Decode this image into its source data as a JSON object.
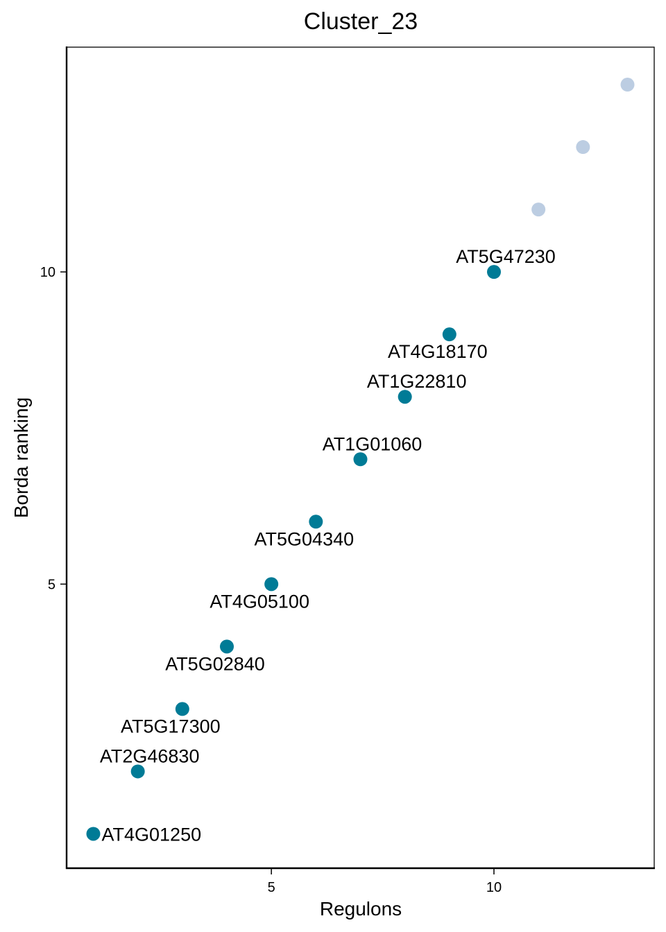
{
  "chart_data": {
    "type": "scatter",
    "title": "Cluster_23",
    "xlabel": "Regulons",
    "ylabel": "Borda ranking",
    "xlim": [
      0.4,
      13.6
    ],
    "ylim": [
      0.45,
      13.6
    ],
    "xticks": [
      5,
      10
    ],
    "yticks": [
      5,
      10
    ],
    "grid": false,
    "colors": {
      "highlight": "#007B96",
      "other": "#BCCDE2"
    },
    "points": [
      {
        "x": 1,
        "y": 1,
        "label": "AT4G01250",
        "highlight": true
      },
      {
        "x": 2,
        "y": 2,
        "label": "AT2G46830",
        "highlight": true
      },
      {
        "x": 3,
        "y": 3,
        "label": "AT5G17300",
        "highlight": true
      },
      {
        "x": 4,
        "y": 4,
        "label": "AT5G02840",
        "highlight": true
      },
      {
        "x": 5,
        "y": 5,
        "label": "AT4G05100",
        "highlight": true
      },
      {
        "x": 6,
        "y": 6,
        "label": "AT5G04340",
        "highlight": true
      },
      {
        "x": 7,
        "y": 7,
        "label": "AT1G01060",
        "highlight": true
      },
      {
        "x": 8,
        "y": 8,
        "label": "AT1G22810",
        "highlight": true
      },
      {
        "x": 9,
        "y": 9,
        "label": "AT4G18170",
        "highlight": true
      },
      {
        "x": 10,
        "y": 10,
        "label": "AT5G47230",
        "highlight": true
      },
      {
        "x": 11,
        "y": 11,
        "label": "",
        "highlight": false
      },
      {
        "x": 12,
        "y": 12,
        "label": "",
        "highlight": false
      },
      {
        "x": 13,
        "y": 13,
        "label": "",
        "highlight": false
      }
    ]
  }
}
